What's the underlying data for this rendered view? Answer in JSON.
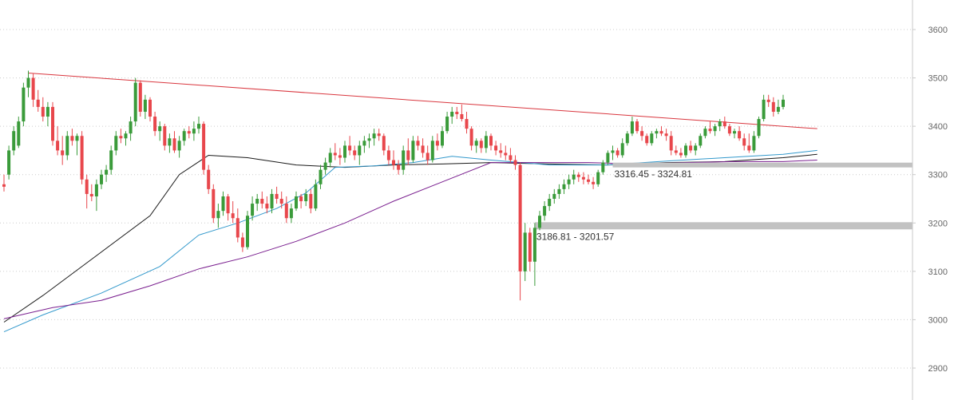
{
  "chart_data": {
    "type": "candlestick",
    "title": "",
    "xlabel": "",
    "ylabel": "",
    "ylim": [
      2860,
      3660
    ],
    "y_ticks": [
      2900,
      3000,
      3100,
      3200,
      3300,
      3400,
      3500,
      3600
    ],
    "grid": true,
    "colors": {
      "up": "#3a9b3a",
      "down": "#e8474c",
      "trendline": "#d9363e",
      "ma_short": "#1a1a1a",
      "ma_mid": "#3399cc",
      "ma_long": "#7a1f8f",
      "zone": "#c2c2c2",
      "grid": "#cccccc"
    },
    "candles": [
      [
        3280,
        3300,
        3265,
        3275
      ],
      [
        3300,
        3360,
        3290,
        3350
      ],
      [
        3350,
        3400,
        3340,
        3390
      ],
      [
        3360,
        3420,
        3355,
        3410
      ],
      [
        3410,
        3490,
        3400,
        3480
      ],
      [
        3480,
        3515,
        3460,
        3500
      ],
      [
        3500,
        3510,
        3440,
        3455
      ],
      [
        3455,
        3475,
        3430,
        3440
      ],
      [
        3440,
        3460,
        3410,
        3420
      ],
      [
        3420,
        3450,
        3400,
        3440
      ],
      [
        3440,
        3450,
        3360,
        3370
      ],
      [
        3370,
        3400,
        3340,
        3350
      ],
      [
        3350,
        3380,
        3320,
        3340
      ],
      [
        3340,
        3390,
        3330,
        3380
      ],
      [
        3380,
        3395,
        3360,
        3370
      ],
      [
        3370,
        3385,
        3340,
        3380
      ],
      [
        3380,
        3390,
        3280,
        3290
      ],
      [
        3290,
        3300,
        3230,
        3260
      ],
      [
        3260,
        3280,
        3245,
        3255
      ],
      [
        3255,
        3290,
        3225,
        3280
      ],
      [
        3280,
        3310,
        3270,
        3300
      ],
      [
        3300,
        3320,
        3285,
        3310
      ],
      [
        3310,
        3360,
        3300,
        3350
      ],
      [
        3350,
        3390,
        3340,
        3380
      ],
      [
        3380,
        3395,
        3365,
        3375
      ],
      [
        3375,
        3390,
        3360,
        3385
      ],
      [
        3385,
        3420,
        3370,
        3410
      ],
      [
        3410,
        3500,
        3400,
        3490
      ],
      [
        3490,
        3495,
        3420,
        3430
      ],
      [
        3430,
        3465,
        3415,
        3455
      ],
      [
        3455,
        3460,
        3410,
        3420
      ],
      [
        3420,
        3430,
        3380,
        3390
      ],
      [
        3390,
        3410,
        3370,
        3400
      ],
      [
        3400,
        3405,
        3350,
        3360
      ],
      [
        3360,
        3385,
        3345,
        3375
      ],
      [
        3375,
        3390,
        3345,
        3350
      ],
      [
        3350,
        3380,
        3335,
        3370
      ],
      [
        3370,
        3395,
        3360,
        3390
      ],
      [
        3390,
        3400,
        3375,
        3385
      ],
      [
        3385,
        3410,
        3370,
        3395
      ],
      [
        3395,
        3420,
        3385,
        3405
      ],
      [
        3405,
        3410,
        3300,
        3310
      ],
      [
        3310,
        3320,
        3260,
        3270
      ],
      [
        3270,
        3280,
        3200,
        3210
      ],
      [
        3210,
        3240,
        3190,
        3225
      ],
      [
        3225,
        3265,
        3215,
        3255
      ],
      [
        3255,
        3260,
        3205,
        3220
      ],
      [
        3220,
        3245,
        3200,
        3210
      ],
      [
        3210,
        3230,
        3160,
        3170
      ],
      [
        3170,
        3180,
        3140,
        3150
      ],
      [
        3150,
        3225,
        3145,
        3215
      ],
      [
        3215,
        3255,
        3205,
        3240
      ],
      [
        3240,
        3260,
        3225,
        3250
      ],
      [
        3250,
        3265,
        3230,
        3240
      ],
      [
        3240,
        3255,
        3220,
        3230
      ],
      [
        3230,
        3270,
        3220,
        3260
      ],
      [
        3260,
        3275,
        3240,
        3250
      ],
      [
        3250,
        3265,
        3230,
        3240
      ],
      [
        3240,
        3255,
        3200,
        3210
      ],
      [
        3210,
        3240,
        3200,
        3230
      ],
      [
        3230,
        3265,
        3225,
        3255
      ],
      [
        3255,
        3260,
        3230,
        3245
      ],
      [
        3245,
        3270,
        3235,
        3260
      ],
      [
        3260,
        3270,
        3220,
        3230
      ],
      [
        3230,
        3290,
        3225,
        3280
      ],
      [
        3280,
        3320,
        3270,
        3310
      ],
      [
        3310,
        3335,
        3300,
        3325
      ],
      [
        3325,
        3355,
        3315,
        3345
      ],
      [
        3345,
        3365,
        3330,
        3340
      ],
      [
        3340,
        3355,
        3320,
        3335
      ],
      [
        3335,
        3370,
        3325,
        3360
      ],
      [
        3360,
        3380,
        3340,
        3350
      ],
      [
        3350,
        3360,
        3330,
        3340
      ],
      [
        3340,
        3370,
        3320,
        3360
      ],
      [
        3360,
        3380,
        3345,
        3370
      ],
      [
        3370,
        3385,
        3355,
        3375
      ],
      [
        3375,
        3395,
        3360,
        3385
      ],
      [
        3385,
        3395,
        3370,
        3380
      ],
      [
        3380,
        3385,
        3340,
        3350
      ],
      [
        3350,
        3360,
        3320,
        3330
      ],
      [
        3330,
        3350,
        3310,
        3320
      ],
      [
        3320,
        3330,
        3300,
        3310
      ],
      [
        3310,
        3360,
        3300,
        3350
      ],
      [
        3350,
        3375,
        3320,
        3330
      ],
      [
        3330,
        3380,
        3325,
        3370
      ],
      [
        3370,
        3380,
        3350,
        3360
      ],
      [
        3360,
        3375,
        3335,
        3345
      ],
      [
        3345,
        3360,
        3320,
        3330
      ],
      [
        3330,
        3380,
        3325,
        3370
      ],
      [
        3370,
        3385,
        3350,
        3360
      ],
      [
        3360,
        3400,
        3355,
        3390
      ],
      [
        3390,
        3430,
        3385,
        3420
      ],
      [
        3420,
        3440,
        3405,
        3430
      ],
      [
        3430,
        3440,
        3415,
        3425
      ],
      [
        3425,
        3445,
        3410,
        3415
      ],
      [
        3415,
        3430,
        3385,
        3395
      ],
      [
        3395,
        3400,
        3350,
        3360
      ],
      [
        3360,
        3375,
        3345,
        3370
      ],
      [
        3370,
        3375,
        3345,
        3355
      ],
      [
        3355,
        3390,
        3345,
        3380
      ],
      [
        3380,
        3385,
        3350,
        3360
      ],
      [
        3360,
        3370,
        3340,
        3350
      ],
      [
        3350,
        3365,
        3335,
        3345
      ],
      [
        3345,
        3360,
        3330,
        3340
      ],
      [
        3340,
        3355,
        3325,
        3330
      ],
      [
        3330,
        3340,
        3310,
        3320
      ],
      [
        3320,
        3325,
        3040,
        3100
      ],
      [
        3100,
        3200,
        3080,
        3180
      ],
      [
        3180,
        3190,
        3100,
        3120
      ],
      [
        3120,
        3200,
        3070,
        3190
      ],
      [
        3190,
        3225,
        3185,
        3215
      ],
      [
        3215,
        3245,
        3205,
        3235
      ],
      [
        3235,
        3260,
        3225,
        3250
      ],
      [
        3250,
        3270,
        3240,
        3260
      ],
      [
        3260,
        3280,
        3250,
        3270
      ],
      [
        3270,
        3290,
        3260,
        3280
      ],
      [
        3280,
        3300,
        3270,
        3290
      ],
      [
        3290,
        3310,
        3280,
        3300
      ],
      [
        3300,
        3305,
        3285,
        3295
      ],
      [
        3295,
        3305,
        3280,
        3290
      ],
      [
        3290,
        3300,
        3280,
        3285
      ],
      [
        3285,
        3295,
        3270,
        3280
      ],
      [
        3280,
        3310,
        3275,
        3305
      ],
      [
        3305,
        3330,
        3300,
        3325
      ],
      [
        3325,
        3350,
        3320,
        3345
      ],
      [
        3345,
        3360,
        3330,
        3350
      ],
      [
        3350,
        3355,
        3335,
        3340
      ],
      [
        3340,
        3375,
        3335,
        3365
      ],
      [
        3365,
        3390,
        3360,
        3385
      ],
      [
        3385,
        3420,
        3380,
        3410
      ],
      [
        3410,
        3415,
        3385,
        3390
      ],
      [
        3390,
        3400,
        3370,
        3380
      ],
      [
        3380,
        3385,
        3360,
        3365
      ],
      [
        3365,
        3390,
        3360,
        3385
      ],
      [
        3385,
        3395,
        3375,
        3390
      ],
      [
        3390,
        3400,
        3380,
        3385
      ],
      [
        3385,
        3395,
        3370,
        3380
      ],
      [
        3380,
        3390,
        3340,
        3350
      ],
      [
        3350,
        3360,
        3340,
        3345
      ],
      [
        3345,
        3355,
        3335,
        3340
      ],
      [
        3340,
        3365,
        3335,
        3360
      ],
      [
        3360,
        3370,
        3345,
        3350
      ],
      [
        3350,
        3365,
        3340,
        3360
      ],
      [
        3360,
        3385,
        3355,
        3380
      ],
      [
        3380,
        3400,
        3375,
        3395
      ],
      [
        3395,
        3410,
        3385,
        3390
      ],
      [
        3390,
        3405,
        3380,
        3400
      ],
      [
        3400,
        3415,
        3390,
        3410
      ],
      [
        3410,
        3420,
        3395,
        3400
      ],
      [
        3400,
        3405,
        3380,
        3385
      ],
      [
        3385,
        3395,
        3375,
        3390
      ],
      [
        3390,
        3400,
        3370,
        3375
      ],
      [
        3375,
        3385,
        3350,
        3360
      ],
      [
        3360,
        3385,
        3345,
        3350
      ],
      [
        3350,
        3390,
        3345,
        3380
      ],
      [
        3380,
        3420,
        3375,
        3415
      ],
      [
        3415,
        3465,
        3410,
        3455
      ],
      [
        3455,
        3465,
        3440,
        3450
      ],
      [
        3450,
        3460,
        3420,
        3430
      ],
      [
        3430,
        3455,
        3425,
        3440
      ],
      [
        3440,
        3465,
        3435,
        3455
      ]
    ],
    "moving_averages": [
      {
        "points": [
          [
            0,
            2995
          ],
          [
            8,
            3050
          ],
          [
            20,
            3140
          ],
          [
            30,
            3215
          ],
          [
            36,
            3300
          ],
          [
            42,
            3340
          ],
          [
            50,
            3335
          ],
          [
            60,
            3320
          ],
          [
            70,
            3315
          ],
          [
            80,
            3320
          ],
          [
            90,
            3322
          ],
          [
            100,
            3325
          ],
          [
            112,
            3322
          ],
          [
            124,
            3320
          ],
          [
            136,
            3325
          ],
          [
            148,
            3327
          ],
          [
            160,
            3335
          ],
          [
            167,
            3342
          ]
        ]
      },
      {
        "points": [
          [
            0,
            2975
          ],
          [
            8,
            3010
          ],
          [
            20,
            3055
          ],
          [
            32,
            3110
          ],
          [
            40,
            3175
          ],
          [
            48,
            3200
          ],
          [
            56,
            3230
          ],
          [
            62,
            3262
          ],
          [
            68,
            3315
          ],
          [
            76,
            3318
          ],
          [
            84,
            3325
          ],
          [
            92,
            3338
          ],
          [
            100,
            3330
          ],
          [
            112,
            3320
          ],
          [
            124,
            3320
          ],
          [
            136,
            3328
          ],
          [
            148,
            3335
          ],
          [
            160,
            3342
          ],
          [
            167,
            3350
          ]
        ]
      },
      {
        "points": [
          [
            0,
            3002
          ],
          [
            10,
            3025
          ],
          [
            20,
            3040
          ],
          [
            30,
            3070
          ],
          [
            40,
            3105
          ],
          [
            50,
            3130
          ],
          [
            60,
            3162
          ],
          [
            70,
            3200
          ],
          [
            80,
            3245
          ],
          [
            90,
            3285
          ],
          [
            100,
            3325
          ],
          [
            110,
            3325
          ],
          [
            120,
            3325
          ],
          [
            130,
            3322
          ],
          [
            140,
            3325
          ],
          [
            150,
            3327
          ],
          [
            160,
            3327
          ],
          [
            167,
            3330
          ]
        ]
      }
    ],
    "trendline": [
      [
        5,
        3510
      ],
      [
        167,
        3395
      ]
    ],
    "zones": [
      {
        "label": "3316.45 - 3324.81",
        "low": 3316.45,
        "high": 3324.81,
        "from_index": 125,
        "label_index": 125
      },
      {
        "label": "3186.81 - 3201.57",
        "low": 3186.81,
        "high": 3201.57,
        "from_index": 109,
        "label_index": 109
      }
    ]
  }
}
